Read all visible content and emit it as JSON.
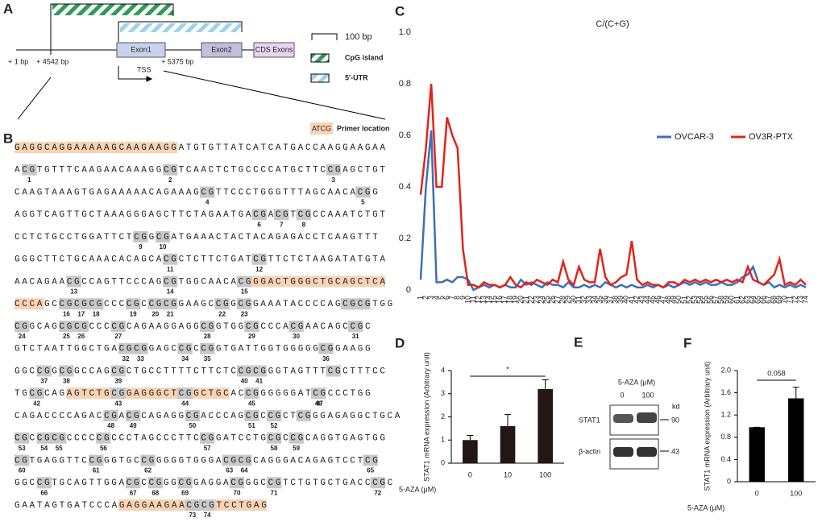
{
  "panel_a": {
    "label": "A",
    "scale": "100 bp",
    "legend": [
      "CpG island",
      "5'-UTR"
    ],
    "exons": [
      "Exon1",
      "Exon2",
      "CDS Exons"
    ],
    "positions": [
      "+ 1 bp",
      "+ 4542 bp",
      "+ 5375 bp"
    ],
    "tss": "TSS"
  },
  "panel_b": {
    "label": "B",
    "legend_swatch": "ATCG",
    "legend_text": "Primer location",
    "lines": [
      {
        "seq": "GAGGCAGGAAAAAGCAAGAAGGATGTGTTATCATCATGACCAAGGAAGAA",
        "cpg": []
      },
      {
        "seq": "ACGTGTTTCAAGAACAAAGGCGTCAACTCTGCCCCATGCTTCCGAGCTGT",
        "cpg": [
          1,
          2,
          3
        ]
      },
      {
        "seq": "CAAGTAAAGTGAGAAAAACAGAAAGCGTTCCCTGGGTTTAGCAACACGG",
        "cpg": [
          4,
          5
        ]
      },
      {
        "seq": "AGGTCAGTTGCTAAAGGGAGCTTCTAGAATGACGACGTCGCCAAATCTGT",
        "cpg": [
          6,
          7,
          8
        ]
      },
      {
        "seq": "CCTCTGCCTGGATTCTCGGCGATGAAACTACTACAGAGACCTCAAGTTT",
        "cpg": [
          9,
          10
        ]
      },
      {
        "seq": "GGGCTTCTGCAAACACAGCACGCTCTTCTGATCGTTCTCTAAGATATGTA",
        "cpg": [
          11,
          12
        ]
      },
      {
        "seq": "AACAGAACGCCAGTTCCCAGCGTGGCAACACGGGACTGGGCTGCAGCTCA",
        "cpg": [
          13,
          14,
          15
        ]
      },
      {
        "seq": "CCCAGCCGCGCGCCCCGCCGCGGAAGCCGGCGGAAATACCCCAGCGCGTGG",
        "cpg": [
          16,
          17,
          18,
          19,
          20,
          21,
          22,
          23
        ]
      },
      {
        "seq": "CGGCAGCGCGCCCCGCAGAAGGAGGCGGTGGCGCCCACGAACAGCCGC",
        "cpg": [
          24,
          25,
          26,
          27,
          28,
          29,
          30,
          31
        ]
      },
      {
        "seq": "GTCTAATTGGCTGACGCGGAGCCGCCGGTGATTGGTGGGGGCGGAAGG",
        "cpg": [
          32,
          33,
          34,
          35,
          36
        ]
      },
      {
        "seq": "GGCCGGCGGCCAGCGCTGCCTTTTCTTCTCCGCGGGTAGTTTCGCTTTCC",
        "cpg": [
          37,
          38,
          39,
          40,
          41
        ]
      },
      {
        "seq": "TGCGCAGAGTCTGCGGAGGGCTCGGCTGCACCGGGGGGATCGCCCTGG",
        "cpg": [
          42,
          43,
          44,
          45,
          46,
          47
        ]
      },
      {
        "seq": "CAGACCCCAGACCGACGCAGAGGCGACCCAGCGCCGCTCGGGAGAGGCTGCA",
        "cpg": [
          48,
          49,
          50,
          51,
          52
        ]
      },
      {
        "seq": "CGCCGCGCCCCCGCCCTAGCCCTTCCGGATCCTGCGCCGCAGGTGAGTGG",
        "cpg": [
          53,
          54,
          55,
          56,
          57,
          58,
          59
        ]
      },
      {
        "seq": "CGTGAGGTTCCGGGTGCCGGGGGTGGGACGCGCAGGGACAGAGTCCTCG",
        "cpg": [
          60,
          61,
          62,
          63,
          64,
          65
        ]
      },
      {
        "seq": "GGCCGTGCAGTTGGACGCCGGGCGGAGGACGGGCCGTCTGTGCTGACCCGC",
        "cpg": [
          66,
          67,
          68,
          69,
          70,
          71,
          72
        ]
      },
      {
        "seq": "GAATAGTGATCCCAGAGGAAGAACGCGTCCTGAG",
        "cpg": [
          73,
          74
        ]
      }
    ]
  },
  "panel_e": {
    "label": "E",
    "treatment": "5-AZA (μM)",
    "doses": [
      "0",
      "100"
    ],
    "unit": "kd",
    "proteins": [
      {
        "name": "STAT1",
        "kd": 90
      },
      {
        "name": "β-actin",
        "kd": 43
      }
    ]
  },
  "chart_data": [
    {
      "label": "C",
      "type": "line",
      "title": "C/(C+G)",
      "legend": "right",
      "categories": [
        1,
        2,
        3,
        4,
        5,
        6,
        7,
        8,
        9,
        10,
        11,
        12,
        13,
        14,
        15,
        16,
        17,
        18,
        19,
        20,
        21,
        22,
        23,
        24,
        25,
        26,
        27,
        28,
        29,
        30,
        31,
        32,
        33,
        34,
        35,
        36,
        37,
        38,
        39,
        40,
        41,
        42,
        43,
        44,
        45,
        46,
        47,
        48,
        49,
        50,
        51,
        52,
        53,
        54,
        55,
        56,
        57,
        58,
        59,
        60,
        61,
        62,
        63,
        64,
        65,
        66,
        67,
        68,
        69,
        70,
        71,
        72,
        73,
        74
      ],
      "series": [
        {
          "name": "OVCAR-3",
          "color": "#3f6fb6",
          "values": [
            0.04,
            0.4,
            0.62,
            0.03,
            0.03,
            0.04,
            0.03,
            0.05,
            0.05,
            0.04,
            0.0,
            0.01,
            0.02,
            0.01,
            0.02,
            0.01,
            0.02,
            0.01,
            0.01,
            0.04,
            0.02,
            0.03,
            0.02,
            0.01,
            0.03,
            0.02,
            0.02,
            0.01,
            0.03,
            0.01,
            0.01,
            0.02,
            0.01,
            0.02,
            0.01,
            0.03,
            0.02,
            0.01,
            0.02,
            0.01,
            0.02,
            0.01,
            0.01,
            0.02,
            0.01,
            0.02,
            0.01,
            0.02,
            0.01,
            0.02,
            0.03,
            0.02,
            0.03,
            0.02,
            0.03,
            0.02,
            0.02,
            0.03,
            0.02,
            0.02,
            0.03,
            0.05,
            0.06,
            0.09,
            0.03,
            0.02,
            0.03,
            0.01,
            0.02,
            0.01,
            0.02,
            0.01,
            0.02,
            0.01
          ]
        },
        {
          "name": "OV3R-PTX",
          "color": "#e2231a",
          "values": [
            0.37,
            0.55,
            0.8,
            0.4,
            0.4,
            0.67,
            0.6,
            0.55,
            0.16,
            0.02,
            0.02,
            0.01,
            0.03,
            0.02,
            0.02,
            0.01,
            0.02,
            0.05,
            0.02,
            0.01,
            0.03,
            0.02,
            0.04,
            0.03,
            0.02,
            0.04,
            0.03,
            0.11,
            0.04,
            0.02,
            0.09,
            0.04,
            0.03,
            0.03,
            0.16,
            0.05,
            0.02,
            0.03,
            0.05,
            0.06,
            0.19,
            0.04,
            0.02,
            0.03,
            0.02,
            0.02,
            0.01,
            0.03,
            0.03,
            0.02,
            0.04,
            0.03,
            0.04,
            0.03,
            0.04,
            0.03,
            0.04,
            0.03,
            0.04,
            0.03,
            0.04,
            0.03,
            0.09,
            0.04,
            0.03,
            0.02,
            0.04,
            0.06,
            0.12,
            0.02,
            0.03,
            0.02,
            0.04,
            0.02
          ]
        }
      ],
      "ylim": [
        0,
        1
      ],
      "yticks": [
        0,
        0.2,
        0.4,
        0.6,
        0.8,
        {
          "value": 1,
          "label": "1.0"
        }
      ],
      "grid": false
    },
    {
      "label": "D",
      "type": "bar",
      "ylabel": "STAT1 mRNA expression (Arbitrary unit)",
      "xlabel": "5-AZA (μM)",
      "annotation": "*",
      "categories": [
        "0",
        "10",
        "100"
      ],
      "values": [
        1,
        1.6,
        3.2
      ],
      "errors": [
        0.2,
        0.5,
        0.4
      ],
      "color": "#231815",
      "ylim": [
        0,
        4
      ],
      "yticks": [
        0,
        1,
        2,
        3,
        4
      ],
      "grid": false
    },
    {
      "label": "F",
      "type": "bar",
      "ylabel": "STAT1 mRNA expression (Arbitrary unit)",
      "xlabel": "5-AZA (μM)",
      "annotation": "0.058",
      "categories": [
        "0",
        "100"
      ],
      "values": [
        0.98,
        1.5
      ],
      "errors": [
        0,
        0.2
      ],
      "color": "#000000",
      "ylim": [
        0,
        2
      ],
      "yticks": [
        0,
        0.4,
        0.8,
        1.2,
        1.6,
        {
          "value": 2,
          "label": "2.0"
        }
      ],
      "grid": false
    }
  ]
}
